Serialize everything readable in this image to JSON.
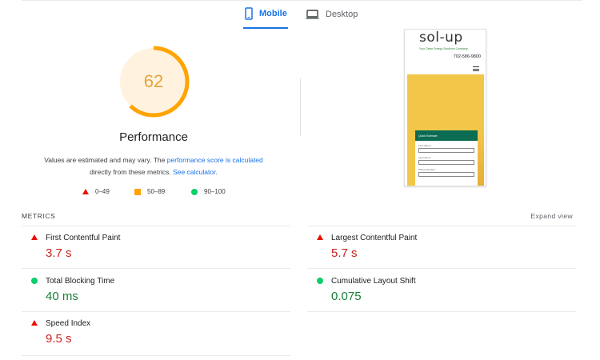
{
  "tabs": [
    {
      "label": "Mobile",
      "icon": "smartphone-icon",
      "active": true
    },
    {
      "label": "Desktop",
      "icon": "laptop-icon",
      "active": false
    }
  ],
  "gauge": {
    "score": "62",
    "score_value": 62,
    "color": "#ffa400",
    "background": "#fff3e0"
  },
  "performance": {
    "title": "Performance",
    "desc_part1": "Values are estimated and may vary. The ",
    "desc_link1": "performance score is calculated",
    "desc_part2": " directly from these metrics. ",
    "desc_link2": "See calculator",
    "desc_part3": "."
  },
  "legend": [
    {
      "label": "0–49",
      "shape": "triangle",
      "color": "#eb0f00"
    },
    {
      "label": "50–89",
      "shape": "square",
      "color": "#ffa400"
    },
    {
      "label": "90–100",
      "shape": "circle",
      "color": "#0cce6b"
    }
  ],
  "screenshot": {
    "logo": "sol-up",
    "tagline": "Your Clean Energy Solutions Company",
    "phone": "702-586-9800",
    "form_title": "Quick Estimate",
    "form_fields": [
      "First Name*",
      "Last Name*",
      "Phone Number*"
    ]
  },
  "metrics": {
    "heading": "METRICS",
    "expand": "Expand view",
    "items": [
      {
        "name": "First Contentful Paint",
        "value": "3.7 s",
        "status": "fail"
      },
      {
        "name": "Largest Contentful Paint",
        "value": "5.7 s",
        "status": "fail"
      },
      {
        "name": "Total Blocking Time",
        "value": "40 ms",
        "status": "pass"
      },
      {
        "name": "Cumulative Layout Shift",
        "value": "0.075",
        "status": "pass"
      },
      {
        "name": "Speed Index",
        "value": "9.5 s",
        "status": "fail"
      }
    ]
  },
  "colors": {
    "accent": "#1a73e8",
    "fail": "#c5221f",
    "pass": "#188038",
    "average": "#ffa400"
  }
}
